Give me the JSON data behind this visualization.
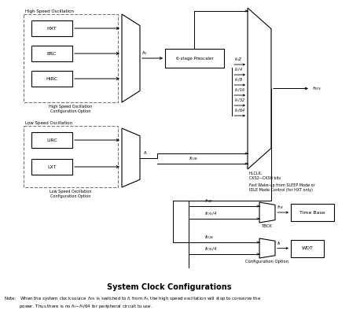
{
  "title": "System Clock Configurations",
  "bg_color": "#ffffff",
  "high_speed_label": "High Speed Oscillation",
  "high_speed_option": "High Speed Oscillation\nConfiguration Option",
  "low_speed_label": "Low Speed Oscillation",
  "low_speed_option": "Low Speed Oscillation\nConfiguration Option",
  "osc_boxes": [
    "HXT",
    "ERC",
    "HIRC"
  ],
  "low_osc_boxes": [
    "LIRC",
    "LXT"
  ],
  "prescaler_label": "6-stage Prescaler",
  "prescaler_outputs": [
    "f_H/2",
    "f_H/4",
    "f_H/8",
    "f_H/16",
    "f_H/32",
    "f_H/64"
  ],
  "hlclk_label": "HLCLK,\nCKS2~CKS0 bits",
  "fast_wakeup": "Fast Wake-up from SLEEP Mode or\nIDLE Mode Control (for HXT only)",
  "fsys_label": "f_SYS",
  "fH_label": "f_H",
  "fL_label": "f_L",
  "fSUB_label": "f_SUB",
  "fTBC_label": "f_TBC",
  "fSYS4_label": "f_SYS/4",
  "fTB_label": "f_TB",
  "fS_label": "f_S",
  "TBCK_label": "TBCK",
  "time_base_label": "Time Base",
  "wdt_label": "WDT",
  "config_option": "Configuration Option",
  "note": "Note:   When the system clock source $f_{SYS}$ is switched to $f_L$ from $f_H$, the high speed oscillation will stop to conserve the\n           power. Thus there is no $f_H$~$f_H$/64 for peripheral circuit to use."
}
